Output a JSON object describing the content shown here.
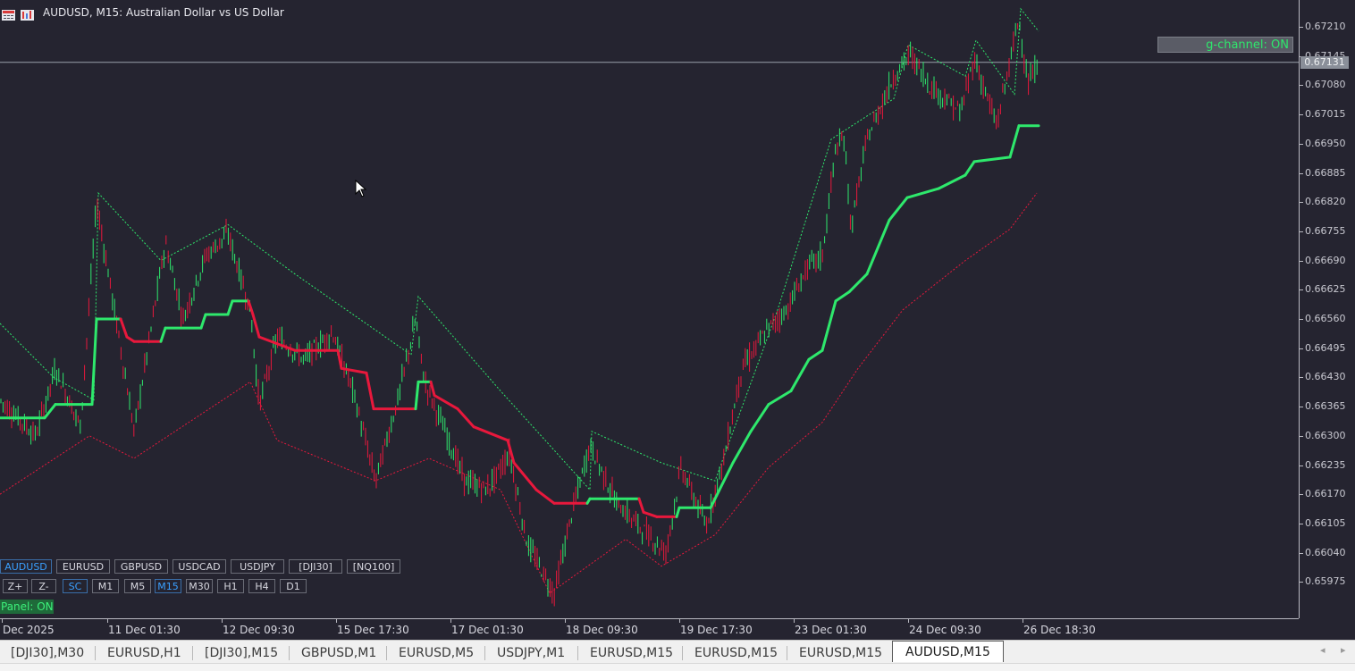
{
  "window": {
    "title": "AUDUSD, M15:  Australian Dollar vs US Dollar",
    "icons": [
      "chart-menu-icon",
      "one-click-trading-icon"
    ]
  },
  "indicator": {
    "badge": "g-channel: ON"
  },
  "price_axis": {
    "labels": [
      "0.67210",
      "0.67145",
      "0.67080",
      "0.67015",
      "0.66950",
      "0.66885",
      "0.66820",
      "0.66755",
      "0.66690",
      "0.66625",
      "0.66560",
      "0.66495",
      "0.66430",
      "0.66365",
      "0.66300",
      "0.66235",
      "0.66170",
      "0.66105",
      "0.66040",
      "0.65975"
    ],
    "current": "0.67131"
  },
  "time_axis": {
    "labels": [
      "Dec 2025",
      "11 Dec 01:30",
      "12 Dec 09:30",
      "15 Dec 17:30",
      "17 Dec 01:30",
      "18 Dec 09:30",
      "19 Dec 17:30",
      "23 Dec 01:30",
      "24 Dec 09:30",
      "26 Dec 18:30"
    ]
  },
  "panel": {
    "symbols": [
      "AUDUSD",
      "EURUSD",
      "GBPUSD",
      "USDCAD",
      "USDJPY",
      "[DJI30]",
      "[NQ100]"
    ],
    "active_symbol": "AUDUSD",
    "controls": [
      "Z+",
      "Z-",
      "SC"
    ],
    "timeframes": [
      "M1",
      "M5",
      "M15",
      "M30",
      "H1",
      "H4",
      "D1"
    ],
    "active_timeframe": "M15",
    "status": "Panel: ON"
  },
  "tabs": [
    "[DJI30],M30",
    "EURUSD,H1",
    "[DJI30],M15",
    "GBPUSD,M1",
    "EURUSD,M5",
    "USDJPY,M1",
    "EURUSD,M15",
    "EURUSD,M15",
    "EURUSD,M15",
    "AUDUSD,M15"
  ],
  "active_tab": "AUDUSD,M15",
  "scroll": {
    "left": "◂",
    "right": "▸"
  },
  "colors": {
    "background": "#252430",
    "bull_candle": "#2ee86c",
    "bear_candle": "#e8183c",
    "channel_up": "#2ee86c",
    "channel_down": "#e8183c",
    "active_control": "#3aa0ff"
  },
  "chart_data": {
    "type": "line",
    "symbol": "AUDUSD",
    "timeframe": "M15",
    "ylim": [
      0.6593,
      0.6726
    ],
    "current_price": 0.67131,
    "x": [
      "Dec 2025",
      "11 Dec 01:30",
      "12 Dec 09:30",
      "15 Dec 17:30",
      "17 Dec 01:30",
      "18 Dec 09:30",
      "19 Dec 17:30",
      "23 Dec 01:30",
      "24 Dec 09:30",
      "26 Dec 18:30"
    ],
    "series": [
      {
        "name": "",
        "values": [
          0.6634,
          0.6655,
          0.6661,
          0.6648,
          0.6616,
          0.6617,
          0.6614,
          0.6665,
          0.6689,
          0.6703
        ]
      },
      {
        "name": "",
        "values": [
          0.6638,
          0.6669,
          0.6662,
          0.6643,
          0.6628,
          0.6612,
          0.663,
          0.6693,
          0.6706,
          0.6713
        ]
      }
    ]
  }
}
